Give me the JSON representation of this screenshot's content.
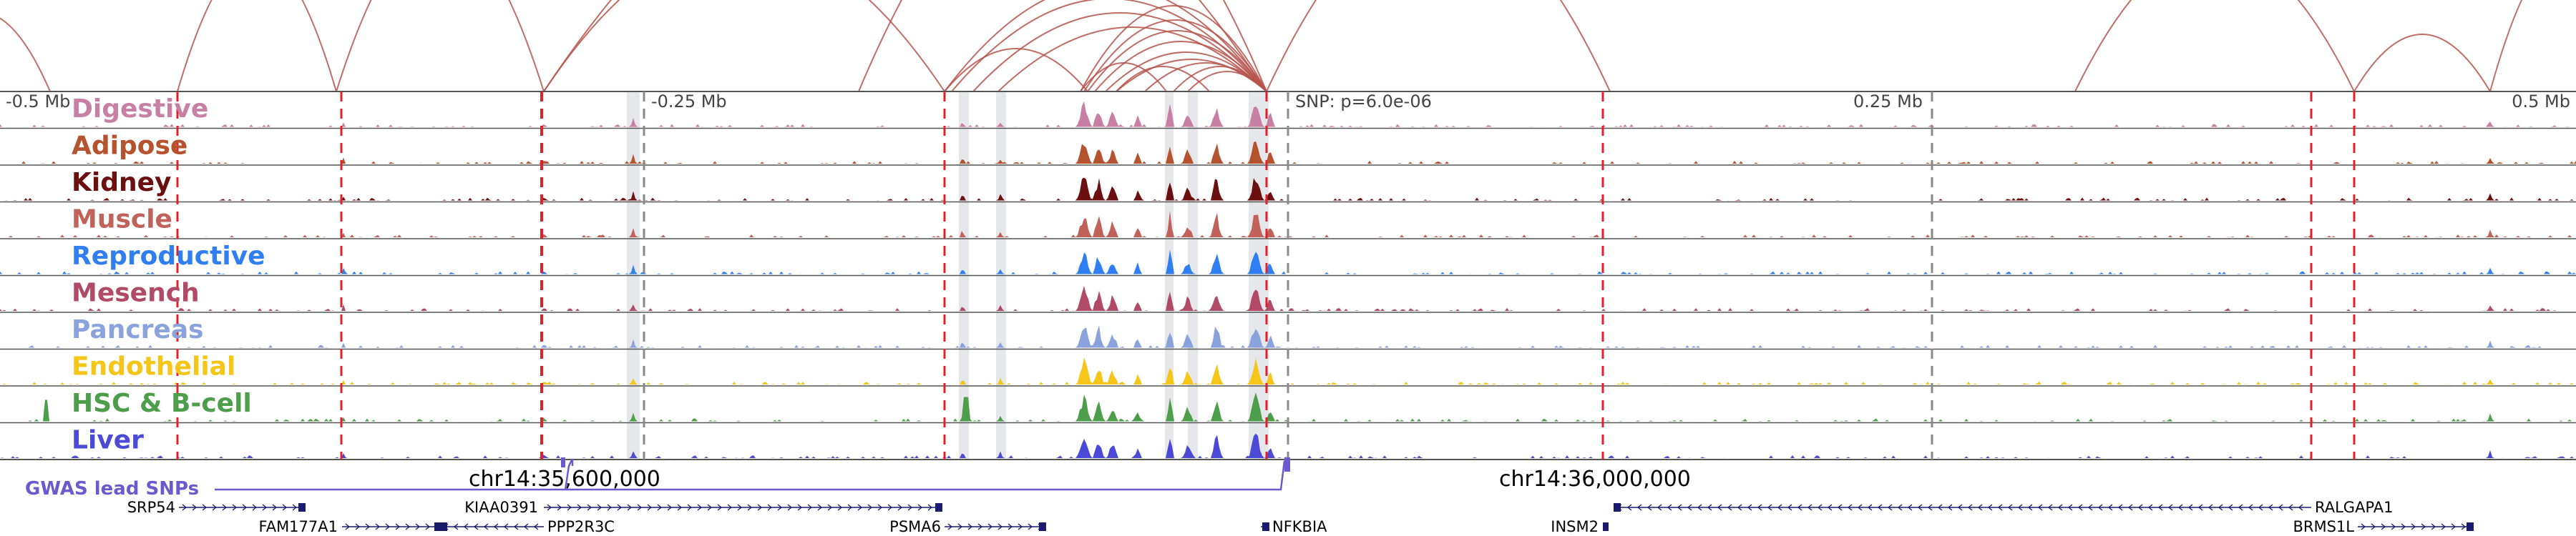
{
  "axis": {
    "left_label": "-0.5 Mb",
    "mid_left_label": "-0.25 Mb",
    "snp_label": "SNP: p=6.0e-06",
    "mid_right_label": "0.25 Mb",
    "right_label": "0.5 Mb"
  },
  "coordinates": {
    "left": "chr14:35,600,000",
    "right": "chr14:36,000,000"
  },
  "tracks": [
    {
      "name": "Digestive",
      "color": "#c77fa3"
    },
    {
      "name": "Adipose",
      "color": "#b5532f"
    },
    {
      "name": "Kidney",
      "color": "#6b0f0f"
    },
    {
      "name": "Muscle",
      "color": "#c0625a"
    },
    {
      "name": "Reproductive",
      "color": "#2f7ff2"
    },
    {
      "name": "Mesench",
      "color": "#b04a66"
    },
    {
      "name": "Pancreas",
      "color": "#8aa3dc"
    },
    {
      "name": "Endothelial",
      "color": "#f5c518"
    },
    {
      "name": "HSC & B-cell",
      "color": "#4d9e4a"
    },
    {
      "name": "Liver",
      "color": "#4a4ad6"
    }
  ],
  "gwas": {
    "label": "GWAS lead SNPs",
    "color": "#6a5acd"
  },
  "genes": [
    {
      "name": "SRP54"
    },
    {
      "name": "FAM177A1"
    },
    {
      "name": "KIAA0391"
    },
    {
      "name": "PPP2R3C"
    },
    {
      "name": "PSMA6"
    },
    {
      "name": "NFKBIA"
    },
    {
      "name": "INSM2"
    },
    {
      "name": "RALGAPA1"
    },
    {
      "name": "BRMS1L"
    }
  ],
  "colors": {
    "arc": "#b5534a",
    "red_line": "#e0202a",
    "gene": "#1a1a6e",
    "highlight": "#cfd3da"
  }
}
